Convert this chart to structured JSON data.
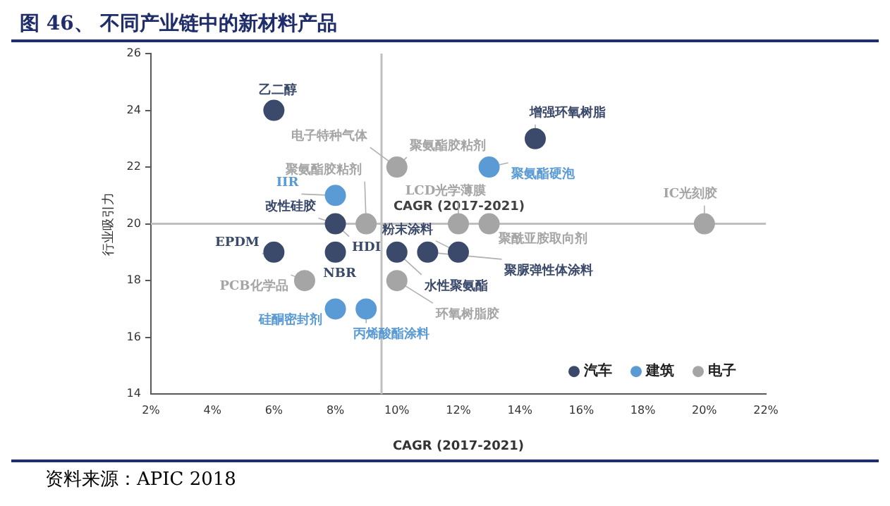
{
  "chart_data": {
    "type": "scatter",
    "title": "图 46、 不同产业链中的新材料产品",
    "xlabel": "CAGR (2017-2021)",
    "ylabel": "行业吸引力",
    "xlim": [
      2,
      22
    ],
    "xticks": [
      {
        "value": 2,
        "label": "2%"
      },
      {
        "value": 4,
        "label": "4%"
      },
      {
        "value": 6,
        "label": "6%"
      },
      {
        "value": 8,
        "label": "8%"
      },
      {
        "value": 10,
        "label": "10%"
      },
      {
        "value": 12,
        "label": "12%"
      },
      {
        "value": 14,
        "label": "14%"
      },
      {
        "value": 16,
        "label": "16%"
      },
      {
        "value": 18,
        "label": "18%"
      },
      {
        "value": 20,
        "label": "20%"
      },
      {
        "value": 22,
        "label": "22%"
      }
    ],
    "ylim": [
      14,
      26
    ],
    "yticks": [
      14,
      16,
      18,
      20,
      22,
      24,
      26
    ],
    "grid": false,
    "legend": "bottom right",
    "marker": "circle",
    "series": [
      {
        "name": "汽车",
        "color": "#3b4a6b",
        "x": [
          6,
          14.5,
          8,
          6,
          8,
          10,
          11,
          12
        ],
        "values": [
          24,
          23,
          20,
          19,
          19,
          19,
          19,
          19
        ]
      },
      {
        "name": "建筑",
        "color": "#5b9bd5",
        "x": [
          8,
          13,
          8,
          9
        ],
        "values": [
          21,
          22,
          17,
          17
        ]
      },
      {
        "name": "电子",
        "color": "#a5a5a5",
        "x": [
          10,
          9,
          12,
          13,
          20,
          7,
          10
        ],
        "values": [
          22,
          20,
          20,
          20,
          20,
          18,
          18
        ]
      }
    ],
    "ref_lines": [
      {
        "axis": "x",
        "value": 9.5,
        "color": "#bfbfbf"
      },
      {
        "axis": "y",
        "value": 20,
        "label": "CAGR (2017-2021)",
        "color": "#bfbfbf"
      }
    ],
    "annotations": [
      {
        "text": "乙二醇",
        "x": 6,
        "y": 24
      },
      {
        "text": "增强环氧树脂",
        "x": 14.5,
        "y": 23
      },
      {
        "text": "电子特种气体",
        "x": 10,
        "y": 22
      },
      {
        "text": "聚氨酯胶粘剂",
        "x": 10,
        "y": 22
      },
      {
        "text": "聚氨酯胶粘剂",
        "x": 9,
        "y": 20
      },
      {
        "text": "IIR",
        "x": 8,
        "y": 21
      },
      {
        "text": "聚氨酯硬泡",
        "x": 13,
        "y": 22
      },
      {
        "text": "LCD光学薄膜",
        "x": 12,
        "y": 20
      },
      {
        "text": "IC光刻胶",
        "x": 20,
        "y": 20
      },
      {
        "text": "改性硅胶",
        "x": 8,
        "y": 20
      },
      {
        "text": "HDI",
        "x": 8,
        "y": 20
      },
      {
        "text": "聚酰亚胺取向剂",
        "x": 13,
        "y": 20
      },
      {
        "text": "粉末涂料",
        "x": 12,
        "y": 19
      },
      {
        "text": "EPDM",
        "x": 6,
        "y": 19
      },
      {
        "text": "NBR",
        "x": 8,
        "y": 19
      },
      {
        "text": "聚脲弹性体涂料",
        "x": 11,
        "y": 19
      },
      {
        "text": "水性聚氨酯",
        "x": 10,
        "y": 19
      },
      {
        "text": "PCB化学品",
        "x": 7,
        "y": 18
      },
      {
        "text": "环氧树脂胶",
        "x": 10,
        "y": 18
      },
      {
        "text": "硅酮密封剂",
        "x": 8,
        "y": 17
      },
      {
        "text": "丙烯酸酯涂料",
        "x": 9,
        "y": 17
      },
      "资料来源：APIC 2018"
    ]
  }
}
